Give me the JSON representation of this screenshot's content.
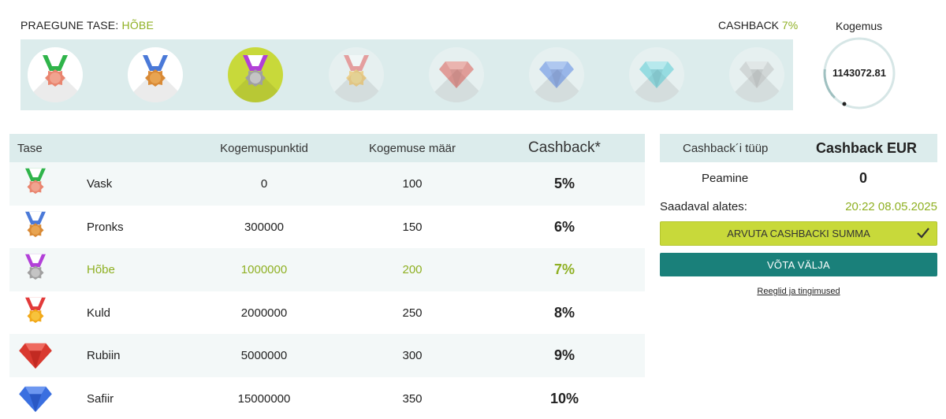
{
  "header": {
    "current_level_label": "PRAEGUNE TASE:",
    "current_level_value": "HÕBE",
    "cashback_label": "CASHBACK",
    "cashback_value": "7%",
    "experience_title": "Kogemus",
    "experience_value": "1143072.81",
    "experience_progress": 0.143
  },
  "level_icons": [
    {
      "icon": "copper-medal-icon",
      "state": "unlocked"
    },
    {
      "icon": "bronze-medal-icon",
      "state": "unlocked"
    },
    {
      "icon": "silver-medal-icon",
      "state": "current"
    },
    {
      "icon": "gold-medal-icon",
      "state": "locked"
    },
    {
      "icon": "ruby-gem-icon",
      "state": "locked"
    },
    {
      "icon": "sapphire-gem-icon",
      "state": "locked"
    },
    {
      "icon": "diamond-gem-icon",
      "state": "locked"
    },
    {
      "icon": "platinum-gem-icon",
      "state": "locked"
    }
  ],
  "table": {
    "headers": {
      "level": "Tase",
      "points": "Kogemuspunktid",
      "rate": "Kogemuse määr",
      "cashback": "Cashback*"
    },
    "rows": [
      {
        "name": "Vask",
        "points": "0",
        "rate": "100",
        "cashback": "5%",
        "icon": "copper-medal-icon"
      },
      {
        "name": "Pronks",
        "points": "300000",
        "rate": "150",
        "cashback": "6%",
        "icon": "bronze-medal-icon"
      },
      {
        "name": "Hõbe",
        "points": "1000000",
        "rate": "200",
        "cashback": "7%",
        "icon": "silver-medal-icon"
      },
      {
        "name": "Kuld",
        "points": "2000000",
        "rate": "250",
        "cashback": "8%",
        "icon": "gold-medal-icon"
      },
      {
        "name": "Rubiin",
        "points": "5000000",
        "rate": "300",
        "cashback": "9%",
        "icon": "ruby-gem-icon"
      },
      {
        "name": "Safiir",
        "points": "15000000",
        "rate": "350",
        "cashback": "10%",
        "icon": "sapphire-gem-icon"
      }
    ]
  },
  "cashback_panel": {
    "type_label": "Cashback´i tüüp",
    "type_value": "Cashback EUR",
    "main_label": "Peamine",
    "main_value": "0",
    "available_label": "Saadaval alates:",
    "available_value": "20:22 08.05.2025",
    "calc_button": "ARVUTA CASHBACKI SUMMA",
    "withdraw_button": "VÕTA VÄLJA",
    "rules_link": "Reeglid ja tingimused"
  },
  "colors": {
    "accent_green": "#8fb023",
    "lime_button": "#c8d93a",
    "teal_button": "#1a807a",
    "panel_bg": "#dcecec"
  }
}
